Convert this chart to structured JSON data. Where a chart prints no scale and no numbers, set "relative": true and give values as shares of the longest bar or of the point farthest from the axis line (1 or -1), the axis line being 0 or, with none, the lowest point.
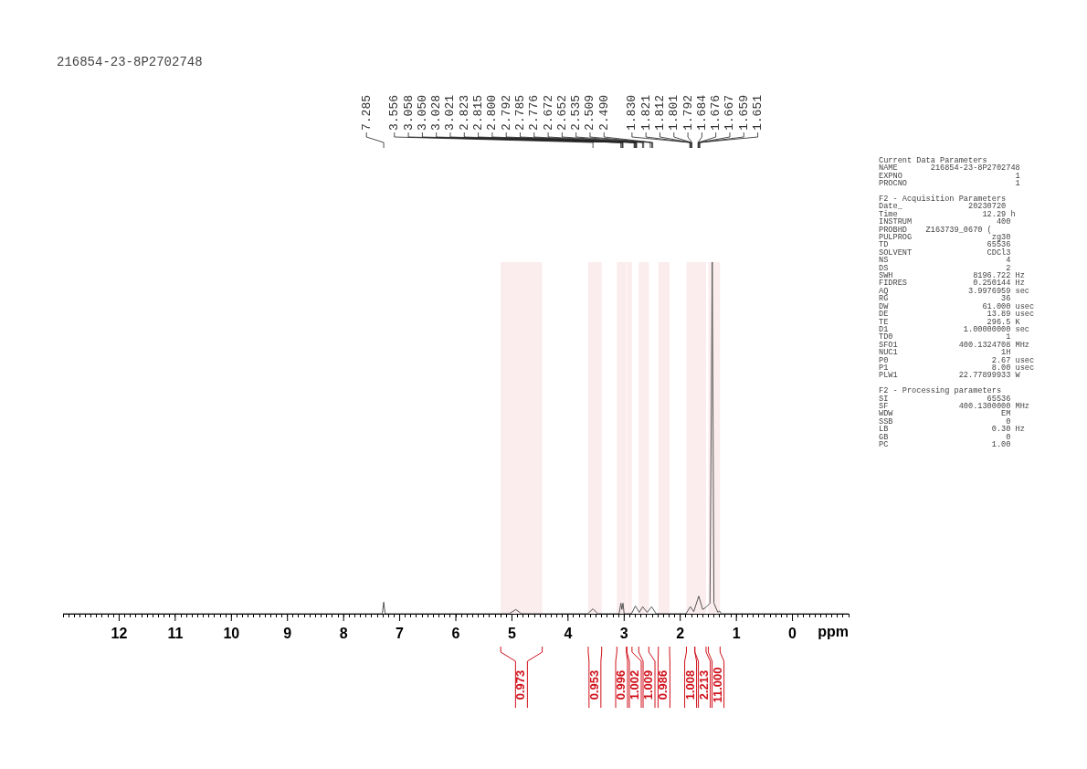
{
  "chart_data": {
    "type": "line",
    "title": "216854-23-8P2702748",
    "xlabel": "ppm",
    "relative": true,
    "legend": false,
    "grid": false,
    "marker": "none",
    "line_style": "solid",
    "xlim": [
      13,
      -1
    ],
    "xticks": [
      {
        "value": 13,
        "label": null
      },
      {
        "value": 12.9,
        "label": null
      },
      {
        "value": 12.8,
        "label": null
      },
      {
        "value": 12.7,
        "label": null
      },
      {
        "value": 12.6,
        "label": null
      },
      {
        "value": 12.5,
        "label": null
      },
      {
        "value": 12.4,
        "label": null
      },
      {
        "value": 12.3,
        "label": null
      },
      {
        "value": 12.2,
        "label": null
      },
      {
        "value": 12.1,
        "label": null
      },
      12,
      {
        "value": 11.9,
        "label": null
      },
      {
        "value": 11.8,
        "label": null
      },
      {
        "value": 11.7,
        "label": null
      },
      {
        "value": 11.6,
        "label": null
      },
      {
        "value": 11.5,
        "label": null
      },
      {
        "value": 11.4,
        "label": null
      },
      {
        "value": 11.3,
        "label": null
      },
      {
        "value": 11.2,
        "label": null
      },
      {
        "value": 11.1,
        "label": null
      },
      11,
      {
        "value": 10.9,
        "label": null
      },
      {
        "value": 10.8,
        "label": null
      },
      {
        "value": 10.7,
        "label": null
      },
      {
        "value": 10.6,
        "label": null
      },
      {
        "value": 10.5,
        "label": null
      },
      {
        "value": 10.4,
        "label": null
      },
      {
        "value": 10.3,
        "label": null
      },
      {
        "value": 10.2,
        "label": null
      },
      {
        "value": 10.1,
        "label": null
      },
      10,
      {
        "value": 9.9,
        "label": null
      },
      {
        "value": 9.8,
        "label": null
      },
      {
        "value": 9.7,
        "label": null
      },
      {
        "value": 9.6,
        "label": null
      },
      {
        "value": 9.5,
        "label": null
      },
      {
        "value": 9.4,
        "label": null
      },
      {
        "value": 9.3,
        "label": null
      },
      {
        "value": 9.2,
        "label": null
      },
      {
        "value": 9.1,
        "label": null
      },
      9,
      {
        "value": 8.9,
        "label": null
      },
      {
        "value": 8.8,
        "label": null
      },
      {
        "value": 8.7,
        "label": null
      },
      {
        "value": 8.6,
        "label": null
      },
      {
        "value": 8.5,
        "label": null
      },
      {
        "value": 8.4,
        "label": null
      },
      {
        "value": 8.3,
        "label": null
      },
      {
        "value": 8.2,
        "label": null
      },
      {
        "value": 8.1,
        "label": null
      },
      8,
      {
        "value": 7.9,
        "label": null
      },
      {
        "value": 7.8,
        "label": null
      },
      {
        "value": 7.7,
        "label": null
      },
      {
        "value": 7.6,
        "label": null
      },
      {
        "value": 7.5,
        "label": null
      },
      {
        "value": 7.4,
        "label": null
      },
      {
        "value": 7.3,
        "label": null
      },
      {
        "value": 7.2,
        "label": null
      },
      {
        "value": 7.1,
        "label": null
      },
      7,
      {
        "value": 6.9,
        "label": null
      },
      {
        "value": 6.8,
        "label": null
      },
      {
        "value": 6.7,
        "label": null
      },
      {
        "value": 6.6,
        "label": null
      },
      {
        "value": 6.5,
        "label": null
      },
      {
        "value": 6.4,
        "label": null
      },
      {
        "value": 6.3,
        "label": null
      },
      {
        "value": 6.2,
        "label": null
      },
      {
        "value": 6.1,
        "label": null
      },
      6,
      {
        "value": 5.9,
        "label": null
      },
      {
        "value": 5.8,
        "label": null
      },
      {
        "value": 5.7,
        "label": null
      },
      {
        "value": 5.6,
        "label": null
      },
      {
        "value": 5.5,
        "label": null
      },
      {
        "value": 5.4,
        "label": null
      },
      {
        "value": 5.3,
        "label": null
      },
      {
        "value": 5.2,
        "label": null
      },
      {
        "value": 5.1,
        "label": null
      },
      5,
      {
        "value": 4.9,
        "label": null
      },
      {
        "value": 4.8,
        "label": null
      },
      {
        "value": 4.7,
        "label": null
      },
      {
        "value": 4.6,
        "label": null
      },
      {
        "value": 4.5,
        "label": null
      },
      {
        "value": 4.4,
        "label": null
      },
      {
        "value": 4.3,
        "label": null
      },
      {
        "value": 4.2,
        "label": null
      },
      {
        "value": 4.1,
        "label": null
      },
      4,
      {
        "value": 3.9,
        "label": null
      },
      {
        "value": 3.8,
        "label": null
      },
      {
        "value": 3.7,
        "label": null
      },
      {
        "value": 3.6,
        "label": null
      },
      {
        "value": 3.5,
        "label": null
      },
      {
        "value": 3.4,
        "label": null
      },
      {
        "value": 3.3,
        "label": null
      },
      {
        "value": 3.2,
        "label": null
      },
      {
        "value": 3.1,
        "label": null
      },
      3,
      {
        "value": 2.9,
        "label": null
      },
      {
        "value": 2.8,
        "label": null
      },
      {
        "value": 2.7,
        "label": null
      },
      {
        "value": 2.6,
        "label": null
      },
      {
        "value": 2.5,
        "label": null
      },
      {
        "value": 2.4,
        "label": null
      },
      {
        "value": 2.3,
        "label": null
      },
      {
        "value": 2.2,
        "label": null
      },
      {
        "value": 2.1,
        "label": null
      },
      2,
      {
        "value": 1.9,
        "label": null
      },
      {
        "value": 1.8,
        "label": null
      },
      {
        "value": 1.7,
        "label": null
      },
      {
        "value": 1.6,
        "label": null
      },
      {
        "value": 1.5,
        "label": null
      },
      {
        "value": 1.4,
        "label": null
      },
      {
        "value": 1.3,
        "label": null
      },
      {
        "value": 1.2,
        "label": null
      },
      {
        "value": 1.1,
        "label": null
      },
      1,
      {
        "value": 0.9,
        "label": null
      },
      {
        "value": 0.8,
        "label": null
      },
      {
        "value": 0.7,
        "label": null
      },
      {
        "value": 0.6,
        "label": null
      },
      {
        "value": 0.5,
        "label": null
      },
      {
        "value": 0.4,
        "label": null
      },
      {
        "value": 0.3,
        "label": null
      },
      {
        "value": 0.2,
        "label": null
      },
      {
        "value": 0.1,
        "label": null
      },
      0,
      {
        "value": -0.1,
        "label": null
      },
      {
        "value": -0.2,
        "label": null
      },
      {
        "value": -0.3,
        "label": null
      },
      {
        "value": -0.4,
        "label": null
      },
      {
        "value": -0.5,
        "label": null
      },
      {
        "value": -0.6,
        "label": null
      },
      {
        "value": -0.7,
        "label": null
      },
      {
        "value": -0.8,
        "label": null
      },
      {
        "value": -0.9,
        "label": null
      },
      {
        "value": -1,
        "label": null
      }
    ],
    "series": [
      {
        "color": "#555555",
        "x": [
          13,
          7.31,
          7.285,
          7.26,
          5.05,
          4.93,
          4.83,
          3.65,
          3.556,
          3.47,
          3.09,
          3.058,
          3.04,
          3.021,
          3.0,
          2.87,
          2.8,
          2.73,
          2.67,
          2.59,
          2.51,
          2.43,
          1.9,
          1.82,
          1.76,
          1.67,
          1.6,
          1.53,
          1.47,
          1.43,
          1.4,
          1.33,
          1.3,
          1.27,
          -1
        ],
        "values": [
          0,
          0,
          0.033,
          0,
          0,
          0.012,
          0,
          0,
          0.014,
          0,
          0,
          0.03,
          0.012,
          0.03,
          0,
          0,
          0.022,
          0.004,
          0.02,
          0.004,
          0.02,
          0,
          0,
          0.02,
          0.006,
          0.05,
          0.012,
          0.02,
          0.03,
          1.0,
          0.03,
          0.004,
          0.008,
          0,
          0
        ]
      }
    ],
    "annotations": [
      {
        "text": "7.285",
        "x": 7.285
      },
      {
        "text": "3.556",
        "x": 3.556
      },
      {
        "text": "3.058",
        "x": 3.058
      },
      {
        "text": "3.050",
        "x": 3.05
      },
      {
        "text": "3.028",
        "x": 3.028
      },
      {
        "text": "3.021",
        "x": 3.021
      },
      {
        "text": "2.823",
        "x": 2.823
      },
      {
        "text": "2.815",
        "x": 2.815
      },
      {
        "text": "2.800",
        "x": 2.8
      },
      {
        "text": "2.792",
        "x": 2.792
      },
      {
        "text": "2.785",
        "x": 2.785
      },
      {
        "text": "2.776",
        "x": 2.776
      },
      {
        "text": "2.672",
        "x": 2.672
      },
      {
        "text": "2.652",
        "x": 2.652
      },
      {
        "text": "2.535",
        "x": 2.535
      },
      {
        "text": "2.509",
        "x": 2.509
      },
      {
        "text": "2.490",
        "x": 2.49
      },
      {
        "text": "1.830",
        "x": 1.83
      },
      {
        "text": "1.821",
        "x": 1.821
      },
      {
        "text": "1.812",
        "x": 1.812
      },
      {
        "text": "1.801",
        "x": 1.801
      },
      {
        "text": "1.792",
        "x": 1.792
      },
      {
        "text": "1.684",
        "x": 1.684
      },
      {
        "text": "1.676",
        "x": 1.676
      },
      {
        "text": "1.667",
        "x": 1.667
      },
      {
        "text": "1.659",
        "x": 1.659
      },
      {
        "text": "1.651",
        "x": 1.651
      },
      "Current Data Parameters\nNAME       216854-23-8P2702748\nEXPNO                        1\nPROCNO                       1",
      "F2 - Acquisition Parameters\nDate_              20230720\nTime                  12.29 h\nINSTRUM                  400\nPROBHD    Z163739_0670 (\nPULPROG                 zg30\nTD                     65536\nSOLVENT                CDCl3\nNS                         4\nDS                         2\nSWH                 8196.722 Hz\nFIDRES              0.250144 Hz\nAQ                 3.9976959 sec\nRG                        36\nDW                    61.000 usec\nDE                     13.89 usec\nTE                     296.5 K\nD1                1.00000000 sec\nTD0                        1\nSFO1             400.1324708 MHz\nNUC1                      1H\nP0                      2.67 usec\nP1                      8.00 usec\nPLW1             22.77899933 W",
      "F2 - Processing parameters\nSI                     65536\nSF               400.1300000 MHz\nWDW                       EM\nSSB                        0\nLB                      0.30 Hz\nGB                         0\nPC                      1.00"
    ],
    "bands": [
      {
        "axis": "x",
        "from": 5.2,
        "to": 4.46,
        "label": "0.973",
        "color": "#d0101a"
      },
      {
        "axis": "x",
        "from": 3.64,
        "to": 3.4,
        "label": "0.953",
        "color": "#d0101a"
      },
      {
        "axis": "x",
        "from": 3.13,
        "to": 2.96,
        "label": "0.996",
        "color": "#d0101a"
      },
      {
        "axis": "x",
        "from": 2.95,
        "to": 2.86,
        "label": "1.002",
        "color": "#d0101a"
      },
      {
        "axis": "x",
        "from": 2.74,
        "to": 2.56,
        "label": "1.009",
        "color": "#d0101a"
      },
      {
        "axis": "x",
        "from": 2.39,
        "to": 2.19,
        "label": "0.986",
        "color": "#d0101a"
      },
      {
        "axis": "x",
        "from": 1.89,
        "to": 1.74,
        "label": "1.008",
        "color": "#d0101a"
      },
      {
        "axis": "x",
        "from": 1.74,
        "to": 1.54,
        "label": "2.213",
        "color": "#d0101a"
      },
      {
        "axis": "x",
        "from": 1.5,
        "to": 1.29,
        "label": "11.000",
        "color": "#d0101a"
      }
    ]
  }
}
